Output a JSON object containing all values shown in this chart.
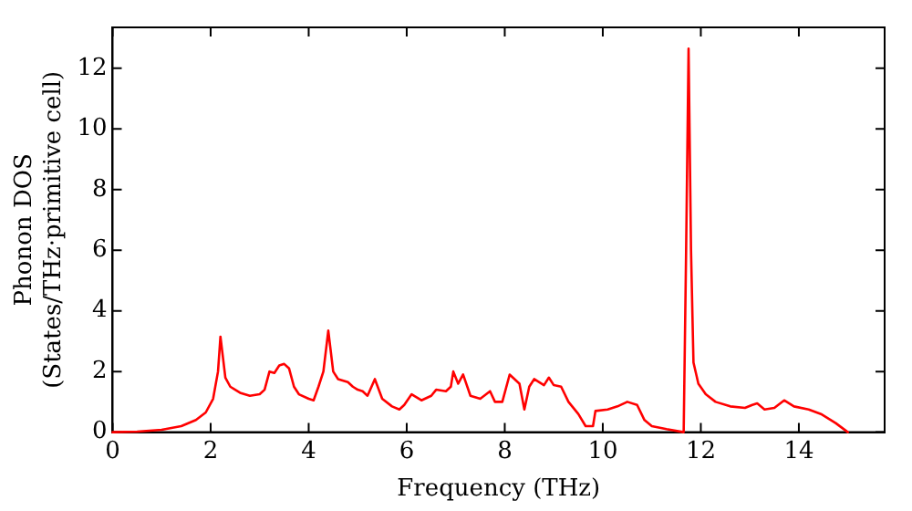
{
  "chart_data": {
    "type": "line",
    "xlabel": "Frequency (THz)",
    "ylabel": "Phonon DOS\n(States/THz·primitive cell)",
    "xlim": [
      0,
      15.75
    ],
    "ylim": [
      0,
      13.35
    ],
    "xticks": [
      0,
      2,
      4,
      6,
      8,
      10,
      12,
      14
    ],
    "yticks": [
      0,
      2,
      4,
      6,
      8,
      10,
      12
    ],
    "grid": false,
    "legend": false,
    "marker": "none",
    "line_style": "solid",
    "series": [
      {
        "color": "#ff0000",
        "x": [
          0,
          0.5,
          1,
          1.4,
          1.7,
          1.9,
          2.05,
          2.15,
          2.2,
          2.3,
          2.4,
          2.6,
          2.8,
          3.0,
          3.1,
          3.2,
          3.3,
          3.4,
          3.5,
          3.6,
          3.7,
          3.8,
          4.0,
          4.1,
          4.2,
          4.3,
          4.4,
          4.5,
          4.6,
          4.8,
          4.9,
          5.0,
          5.1,
          5.2,
          5.35,
          5.5,
          5.7,
          5.85,
          5.95,
          6.1,
          6.3,
          6.5,
          6.6,
          6.8,
          6.9,
          6.95,
          7.05,
          7.15,
          7.3,
          7.5,
          7.7,
          7.8,
          7.95,
          8.1,
          8.3,
          8.4,
          8.5,
          8.6,
          8.8,
          8.9,
          9.0,
          9.15,
          9.3,
          9.5,
          9.65,
          9.8,
          9.85,
          10.1,
          10.3,
          10.5,
          10.7,
          10.85,
          11.0,
          11.3,
          11.65,
          11.7,
          11.75,
          11.8,
          11.85,
          11.95,
          12.1,
          12.3,
          12.6,
          12.9,
          13.05,
          13.15,
          13.3,
          13.5,
          13.7,
          13.9,
          14.2,
          14.45,
          14.75,
          15.0
        ],
        "values": [
          0,
          0.02,
          0.08,
          0.2,
          0.4,
          0.65,
          1.1,
          2.0,
          3.15,
          1.8,
          1.5,
          1.3,
          1.2,
          1.25,
          1.4,
          2.0,
          1.95,
          2.2,
          2.25,
          2.1,
          1.5,
          1.25,
          1.1,
          1.05,
          1.5,
          2.0,
          3.35,
          2.0,
          1.75,
          1.65,
          1.5,
          1.4,
          1.35,
          1.2,
          1.75,
          1.1,
          0.85,
          0.75,
          0.9,
          1.25,
          1.05,
          1.2,
          1.4,
          1.35,
          1.5,
          2.0,
          1.6,
          1.9,
          1.2,
          1.1,
          1.35,
          1.0,
          1.0,
          1.9,
          1.6,
          0.75,
          1.5,
          1.75,
          1.55,
          1.8,
          1.55,
          1.5,
          1.0,
          0.6,
          0.2,
          0.2,
          0.7,
          0.75,
          0.85,
          1.0,
          0.9,
          0.4,
          0.2,
          0.1,
          0,
          6,
          12.65,
          6,
          2.3,
          1.6,
          1.25,
          1.0,
          0.85,
          0.8,
          0.9,
          0.95,
          0.75,
          0.8,
          1.05,
          0.85,
          0.75,
          0.6,
          0.3,
          0
        ]
      }
    ]
  }
}
